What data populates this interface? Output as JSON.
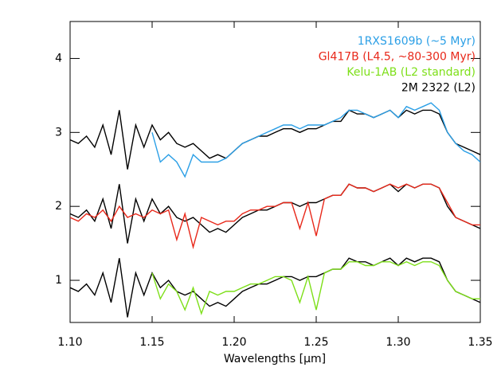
{
  "chart_data": {
    "type": "line",
    "xlabel": "Wavelengths [μm]",
    "xlim": [
      1.1,
      1.35
    ],
    "xticks": [
      {
        "value": 1.1,
        "label": "1.10"
      },
      {
        "value": 1.15,
        "label": "1.15"
      },
      {
        "value": 1.2,
        "label": "1.20"
      },
      {
        "value": 1.25,
        "label": "1.25"
      },
      {
        "value": 1.3,
        "label": "1.30"
      },
      {
        "value": 1.35,
        "label": "1.35"
      }
    ],
    "ylim": [
      0.43,
      4.5
    ],
    "yticks": [
      1,
      2,
      3,
      4
    ],
    "x": [
      1.1,
      1.105,
      1.11,
      1.115,
      1.12,
      1.125,
      1.13,
      1.135,
      1.14,
      1.145,
      1.15,
      1.155,
      1.16,
      1.165,
      1.17,
      1.175,
      1.18,
      1.185,
      1.19,
      1.195,
      1.2,
      1.205,
      1.21,
      1.215,
      1.22,
      1.225,
      1.23,
      1.235,
      1.24,
      1.245,
      1.25,
      1.255,
      1.26,
      1.265,
      1.27,
      1.275,
      1.28,
      1.285,
      1.29,
      1.295,
      1.3,
      1.305,
      1.31,
      1.315,
      1.32,
      1.325,
      1.33,
      1.335,
      1.34,
      1.345,
      1.35
    ],
    "series": [
      {
        "name": "1RXS1609b (~5 Myr)",
        "color": "#2b9fe6",
        "values": [
          null,
          null,
          null,
          null,
          null,
          null,
          null,
          null,
          null,
          null,
          3.0,
          2.6,
          2.7,
          2.6,
          2.4,
          2.7,
          2.6,
          2.6,
          2.6,
          2.65,
          2.75,
          2.85,
          2.9,
          2.95,
          3.0,
          3.05,
          3.1,
          3.1,
          3.05,
          3.1,
          3.1,
          3.1,
          3.15,
          3.2,
          3.3,
          3.3,
          3.25,
          3.2,
          3.25,
          3.3,
          3.2,
          3.35,
          3.3,
          3.35,
          3.4,
          3.3,
          3.0,
          2.85,
          2.75,
          2.7,
          2.6
        ]
      },
      {
        "name": "Gl417B (L4.5, ~80-300 Myr)",
        "color": "#e8281a",
        "values": [
          1.85,
          1.8,
          1.9,
          1.85,
          1.95,
          1.8,
          2.0,
          1.85,
          1.9,
          1.85,
          1.95,
          1.9,
          1.95,
          1.55,
          1.9,
          1.45,
          1.85,
          1.8,
          1.75,
          1.8,
          1.8,
          1.9,
          1.95,
          1.95,
          2.0,
          2.0,
          2.05,
          2.05,
          1.7,
          2.05,
          1.6,
          2.1,
          2.15,
          2.15,
          2.3,
          2.25,
          2.25,
          2.2,
          2.25,
          2.3,
          2.25,
          2.3,
          2.25,
          2.3,
          2.3,
          2.25,
          2.05,
          1.85,
          1.8,
          1.75,
          1.75
        ]
      },
      {
        "name": "Kelu-1AB (L2 standard)",
        "color": "#7ddf18",
        "values": [
          null,
          null,
          null,
          null,
          null,
          null,
          null,
          null,
          null,
          null,
          1.1,
          0.75,
          0.95,
          0.85,
          0.6,
          0.9,
          0.55,
          0.85,
          0.8,
          0.85,
          0.85,
          0.9,
          0.95,
          0.95,
          1.0,
          1.05,
          1.05,
          1.0,
          0.7,
          1.05,
          0.6,
          1.1,
          1.15,
          1.15,
          1.25,
          1.25,
          1.2,
          1.2,
          1.25,
          1.25,
          1.2,
          1.25,
          1.2,
          1.25,
          1.25,
          1.2,
          1.0,
          0.85,
          0.8,
          0.75,
          0.75
        ]
      },
      {
        "name": "2M 2322 (L2)",
        "color": "#000000",
        "values": [
          2.9,
          2.85,
          2.95,
          2.8,
          3.1,
          2.7,
          3.3,
          2.5,
          3.1,
          2.8,
          3.1,
          2.9,
          3.0,
          2.85,
          2.8,
          2.85,
          2.75,
          2.65,
          2.7,
          2.65,
          2.75,
          2.85,
          2.9,
          2.95,
          2.95,
          3.0,
          3.05,
          3.05,
          3.0,
          3.05,
          3.05,
          3.1,
          3.15,
          3.15,
          3.3,
          3.25,
          3.25,
          3.2,
          3.25,
          3.3,
          3.2,
          3.3,
          3.25,
          3.3,
          3.3,
          3.25,
          3.0,
          2.85,
          2.8,
          2.75,
          2.7
        ]
      },
      {
        "color": "#000000",
        "values": [
          1.9,
          1.85,
          1.95,
          1.8,
          2.1,
          1.7,
          2.3,
          1.5,
          2.1,
          1.8,
          2.1,
          1.9,
          2.0,
          1.85,
          1.8,
          1.85,
          1.75,
          1.65,
          1.7,
          1.65,
          1.75,
          1.85,
          1.9,
          1.95,
          1.95,
          2.0,
          2.05,
          2.05,
          2.0,
          2.05,
          2.05,
          2.1,
          2.15,
          2.15,
          2.3,
          2.25,
          2.25,
          2.2,
          2.25,
          2.3,
          2.2,
          2.3,
          2.25,
          2.3,
          2.3,
          2.25,
          2.0,
          1.85,
          1.8,
          1.75,
          1.7
        ]
      },
      {
        "color": "#000000",
        "values": [
          0.9,
          0.85,
          0.95,
          0.8,
          1.1,
          0.7,
          1.3,
          0.5,
          1.1,
          0.8,
          1.1,
          0.9,
          1.0,
          0.85,
          0.8,
          0.85,
          0.75,
          0.65,
          0.7,
          0.65,
          0.75,
          0.85,
          0.9,
          0.95,
          0.95,
          1.0,
          1.05,
          1.05,
          1.0,
          1.05,
          1.05,
          1.1,
          1.15,
          1.15,
          1.3,
          1.25,
          1.25,
          1.2,
          1.25,
          1.3,
          1.2,
          1.3,
          1.25,
          1.3,
          1.3,
          1.25,
          1.0,
          0.85,
          0.8,
          0.75,
          0.7
        ]
      }
    ]
  }
}
